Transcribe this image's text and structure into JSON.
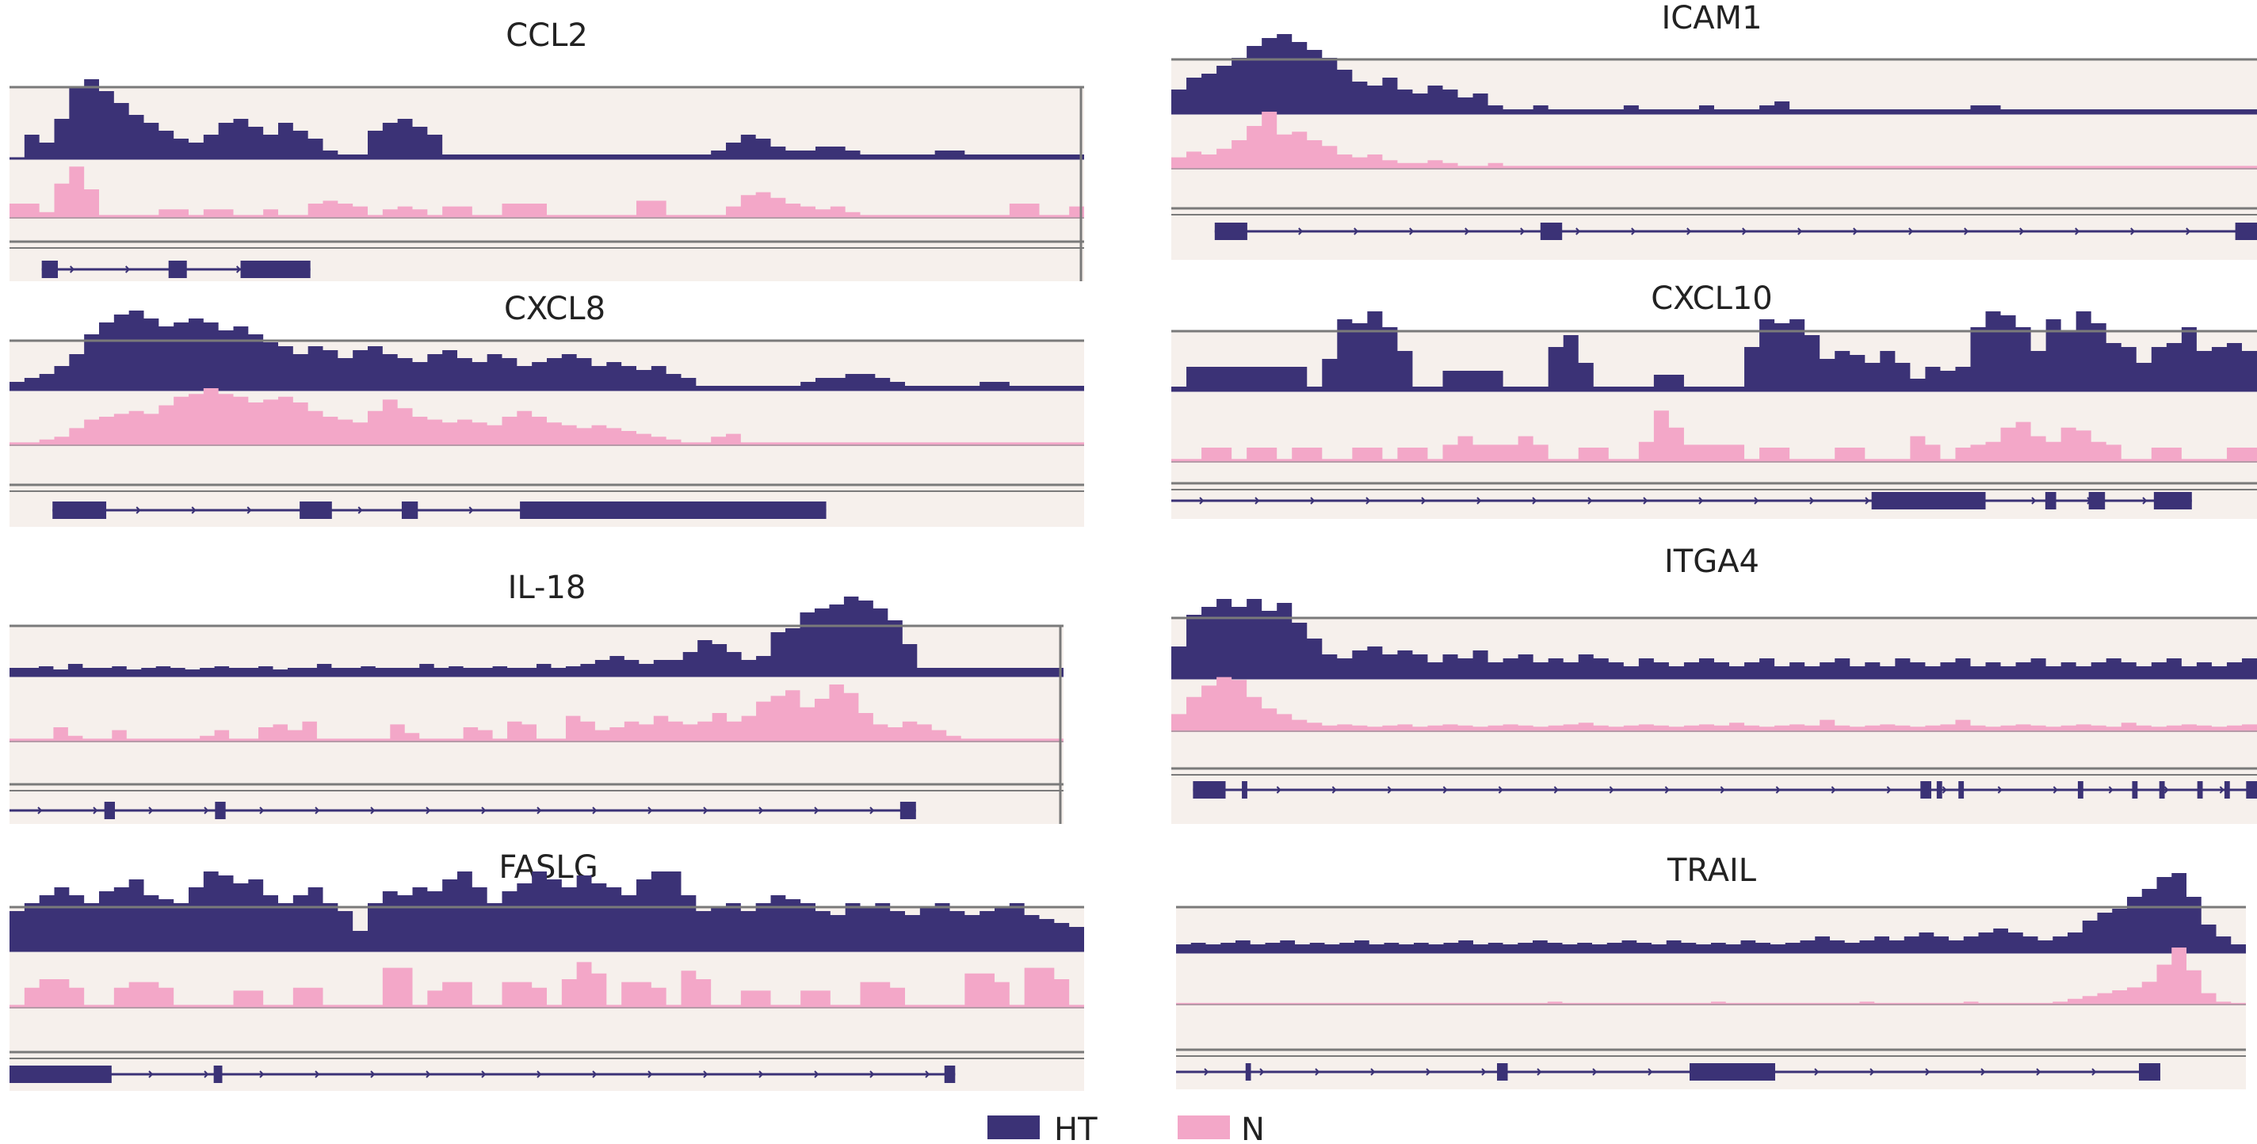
{
  "colors": {
    "ht": "#3b3276",
    "n": "#f3a7c8",
    "panel_bg": "#f6f0ec",
    "frame": "#7a7a7a",
    "gene_model": "#3b3276"
  },
  "legend": {
    "items": [
      {
        "label": "HT",
        "color": "#3b3276"
      },
      {
        "label": "N",
        "color": "#f3a7c8"
      }
    ]
  },
  "genes": [
    {
      "id": "ccl2",
      "name": "CCL2",
      "ht": [
        0,
        0.3,
        0.2,
        0.5,
        0.9,
        1.0,
        0.85,
        0.7,
        0.55,
        0.45,
        0.35,
        0.25,
        0.2,
        0.3,
        0.45,
        0.5,
        0.4,
        0.3,
        0.45,
        0.35,
        0.25,
        0.1,
        0.05,
        0.05,
        0.35,
        0.45,
        0.5,
        0.4,
        0.3,
        0.05,
        0.05,
        0.05,
        0.05,
        0.05,
        0.05,
        0.05,
        0.05,
        0.05,
        0.05,
        0.05,
        0.05,
        0.05,
        0.05,
        0.05,
        0.05,
        0.05,
        0.05,
        0.1,
        0.2,
        0.3,
        0.25,
        0.15,
        0.1,
        0.1,
        0.15,
        0.15,
        0.1,
        0.05,
        0.05,
        0.05,
        0.05,
        0.05,
        0.1,
        0.1,
        0.05,
        0.05,
        0.05,
        0.05,
        0.05,
        0.05,
        0.05,
        0.05
      ],
      "n": [
        0.25,
        0.25,
        0.1,
        0.6,
        0.9,
        0.5,
        0.05,
        0.05,
        0.05,
        0.05,
        0.15,
        0.15,
        0.05,
        0.15,
        0.15,
        0.05,
        0.05,
        0.15,
        0.05,
        0.05,
        0.25,
        0.3,
        0.25,
        0.2,
        0.05,
        0.15,
        0.2,
        0.15,
        0.05,
        0.2,
        0.2,
        0.05,
        0.05,
        0.25,
        0.25,
        0.25,
        0.05,
        0.05,
        0.05,
        0.05,
        0.05,
        0.05,
        0.3,
        0.3,
        0.05,
        0.05,
        0.05,
        0.05,
        0.2,
        0.4,
        0.45,
        0.35,
        0.25,
        0.2,
        0.15,
        0.2,
        0.1,
        0.05,
        0.05,
        0.05,
        0.05,
        0.05,
        0.05,
        0.05,
        0.05,
        0.05,
        0.05,
        0.25,
        0.25,
        0.05,
        0.05,
        0.2
      ],
      "model": {
        "from": 0.03,
        "to": 0.28,
        "exons": [
          [
            0.03,
            0.045
          ],
          [
            0.148,
            0.165
          ],
          [
            0.215,
            0.28
          ]
        ]
      }
    },
    {
      "id": "icam1",
      "name": "ICAM1",
      "ht": [
        0.3,
        0.45,
        0.5,
        0.6,
        0.7,
        0.85,
        0.95,
        1.0,
        0.9,
        0.8,
        0.7,
        0.55,
        0.4,
        0.35,
        0.45,
        0.3,
        0.25,
        0.35,
        0.3,
        0.2,
        0.25,
        0.1,
        0.05,
        0.05,
        0.1,
        0.05,
        0.05,
        0.05,
        0.05,
        0.05,
        0.1,
        0.05,
        0.05,
        0.05,
        0.05,
        0.1,
        0.05,
        0.05,
        0.05,
        0.1,
        0.15,
        0.05,
        0.05,
        0.05,
        0.05,
        0.05,
        0.05,
        0.05,
        0.05,
        0.05,
        0.05,
        0.05,
        0.05,
        0.1,
        0.1,
        0.05,
        0.05,
        0.05,
        0.05,
        0.05,
        0.05,
        0.05,
        0.05,
        0.05,
        0.05,
        0.05,
        0.05,
        0.05,
        0.05,
        0.05,
        0.05,
        0.05
      ],
      "n": [
        0.2,
        0.3,
        0.25,
        0.35,
        0.5,
        0.75,
        1.0,
        0.6,
        0.65,
        0.5,
        0.4,
        0.25,
        0.2,
        0.25,
        0.15,
        0.1,
        0.1,
        0.15,
        0.1,
        0.05,
        0.05,
        0.1,
        0.05,
        0.05,
        0.05,
        0.05,
        0.05,
        0.05,
        0.05,
        0.05,
        0.05,
        0.05,
        0.05,
        0.05,
        0.05,
        0.05,
        0.05,
        0.05,
        0.05,
        0.05,
        0.05,
        0.05,
        0.05,
        0.05,
        0.05,
        0.05,
        0.05,
        0.05,
        0.05,
        0.05,
        0.05,
        0.05,
        0.05,
        0.05,
        0.05,
        0.05,
        0.05,
        0.05,
        0.05,
        0.05,
        0.05,
        0.05,
        0.05,
        0.05,
        0.05,
        0.05,
        0.05,
        0.05,
        0.05,
        0.05,
        0.05,
        0.05
      ],
      "model": {
        "from": 0.04,
        "to": 1.0,
        "exons": [
          [
            0.04,
            0.07
          ],
          [
            0.34,
            0.36
          ],
          [
            0.98,
            1.0
          ]
        ]
      }
    },
    {
      "id": "cxcl8",
      "name": "CXCL8",
      "ht": [
        0.1,
        0.15,
        0.2,
        0.3,
        0.45,
        0.7,
        0.85,
        0.95,
        1.0,
        0.9,
        0.8,
        0.85,
        0.9,
        0.85,
        0.75,
        0.8,
        0.7,
        0.6,
        0.55,
        0.45,
        0.55,
        0.5,
        0.4,
        0.5,
        0.55,
        0.45,
        0.4,
        0.35,
        0.45,
        0.5,
        0.4,
        0.35,
        0.45,
        0.4,
        0.3,
        0.35,
        0.4,
        0.45,
        0.4,
        0.3,
        0.35,
        0.3,
        0.25,
        0.3,
        0.2,
        0.15,
        0.05,
        0.05,
        0.05,
        0.05,
        0.05,
        0.05,
        0.05,
        0.1,
        0.15,
        0.15,
        0.2,
        0.2,
        0.15,
        0.1,
        0.05,
        0.05,
        0.05,
        0.05,
        0.05,
        0.1,
        0.1,
        0.05,
        0.05,
        0.05,
        0.05,
        0.05
      ],
      "n": [
        0.05,
        0.05,
        0.1,
        0.15,
        0.3,
        0.45,
        0.5,
        0.55,
        0.6,
        0.55,
        0.7,
        0.85,
        0.9,
        1.0,
        0.9,
        0.85,
        0.75,
        0.8,
        0.85,
        0.75,
        0.6,
        0.5,
        0.45,
        0.4,
        0.6,
        0.8,
        0.65,
        0.5,
        0.45,
        0.4,
        0.45,
        0.4,
        0.35,
        0.5,
        0.6,
        0.5,
        0.4,
        0.35,
        0.3,
        0.35,
        0.3,
        0.25,
        0.2,
        0.15,
        0.1,
        0.05,
        0.05,
        0.15,
        0.2,
        0.05,
        0.05,
        0.05,
        0.05,
        0.05,
        0.05,
        0.05,
        0.05,
        0.05,
        0.05,
        0.05,
        0.05,
        0.05,
        0.05,
        0.05,
        0.05,
        0.05,
        0.05,
        0.05,
        0.05,
        0.05,
        0.05,
        0.05
      ],
      "model": {
        "from": 0.04,
        "to": 0.76,
        "exons": [
          [
            0.04,
            0.09
          ],
          [
            0.27,
            0.3
          ],
          [
            0.365,
            0.38
          ],
          [
            0.475,
            0.76
          ]
        ]
      }
    },
    {
      "id": "cxcl10",
      "name": "CXCL10",
      "ht": [
        0.05,
        0.3,
        0.3,
        0.3,
        0.3,
        0.3,
        0.3,
        0.3,
        0.3,
        0.05,
        0.4,
        0.9,
        0.85,
        1.0,
        0.8,
        0.5,
        0.05,
        0.05,
        0.25,
        0.25,
        0.25,
        0.25,
        0.05,
        0.05,
        0.05,
        0.55,
        0.7,
        0.35,
        0.05,
        0.05,
        0.05,
        0.05,
        0.2,
        0.2,
        0.05,
        0.05,
        0.05,
        0.05,
        0.55,
        0.9,
        0.85,
        0.9,
        0.7,
        0.4,
        0.5,
        0.45,
        0.35,
        0.5,
        0.35,
        0.15,
        0.3,
        0.25,
        0.3,
        0.8,
        1.0,
        0.95,
        0.8,
        0.5,
        0.9,
        0.75,
        1.0,
        0.85,
        0.6,
        0.55,
        0.35,
        0.55,
        0.6,
        0.8,
        0.5,
        0.55,
        0.6,
        0.5
      ],
      "n": [
        0.05,
        0.05,
        0.25,
        0.25,
        0.05,
        0.25,
        0.25,
        0.05,
        0.25,
        0.25,
        0.05,
        0.05,
        0.25,
        0.25,
        0.05,
        0.25,
        0.25,
        0.05,
        0.3,
        0.45,
        0.3,
        0.3,
        0.3,
        0.45,
        0.3,
        0.05,
        0.05,
        0.25,
        0.25,
        0.05,
        0.05,
        0.35,
        0.9,
        0.6,
        0.3,
        0.3,
        0.3,
        0.3,
        0.05,
        0.25,
        0.25,
        0.05,
        0.05,
        0.05,
        0.25,
        0.25,
        0.05,
        0.05,
        0.05,
        0.45,
        0.3,
        0.05,
        0.25,
        0.3,
        0.35,
        0.6,
        0.7,
        0.45,
        0.35,
        0.6,
        0.55,
        0.35,
        0.3,
        0.05,
        0.05,
        0.25,
        0.25,
        0.05,
        0.05,
        0.05,
        0.25,
        0.25
      ],
      "model": {
        "from": 0.0,
        "to": 0.94,
        "exons": [
          [
            0.645,
            0.75
          ],
          [
            0.805,
            0.815
          ],
          [
            0.845,
            0.86
          ],
          [
            0.905,
            0.94
          ]
        ]
      }
    },
    {
      "id": "il18",
      "name": "IL-18",
      "ht": [
        0.1,
        0.1,
        0.12,
        0.08,
        0.15,
        0.1,
        0.1,
        0.12,
        0.08,
        0.1,
        0.12,
        0.1,
        0.08,
        0.1,
        0.12,
        0.1,
        0.1,
        0.12,
        0.08,
        0.1,
        0.1,
        0.15,
        0.1,
        0.1,
        0.12,
        0.1,
        0.1,
        0.1,
        0.15,
        0.1,
        0.12,
        0.1,
        0.1,
        0.12,
        0.1,
        0.1,
        0.15,
        0.1,
        0.12,
        0.15,
        0.2,
        0.25,
        0.2,
        0.15,
        0.2,
        0.2,
        0.3,
        0.45,
        0.4,
        0.3,
        0.2,
        0.25,
        0.55,
        0.6,
        0.8,
        0.85,
        0.9,
        1.0,
        0.95,
        0.85,
        0.7,
        0.4,
        0.1,
        0.1,
        0.1,
        0.1,
        0.1,
        0.1,
        0.1,
        0.1,
        0.1,
        0.1
      ],
      "n": [
        0.05,
        0.05,
        0.05,
        0.25,
        0.1,
        0.05,
        0.05,
        0.2,
        0.05,
        0.05,
        0.05,
        0.05,
        0.05,
        0.1,
        0.2,
        0.05,
        0.05,
        0.25,
        0.3,
        0.2,
        0.35,
        0.05,
        0.05,
        0.05,
        0.05,
        0.05,
        0.3,
        0.15,
        0.05,
        0.05,
        0.05,
        0.25,
        0.2,
        0.05,
        0.35,
        0.3,
        0.05,
        0.05,
        0.45,
        0.35,
        0.2,
        0.25,
        0.35,
        0.3,
        0.45,
        0.35,
        0.3,
        0.35,
        0.5,
        0.35,
        0.45,
        0.7,
        0.8,
        0.9,
        0.6,
        0.75,
        1.0,
        0.85,
        0.5,
        0.3,
        0.25,
        0.35,
        0.3,
        0.2,
        0.1,
        0.05,
        0.05,
        0.05,
        0.05,
        0.05,
        0.05,
        0.05
      ],
      "model": {
        "from": 0.0,
        "to": 0.86,
        "exons": [
          [
            0.09,
            0.1
          ],
          [
            0.195,
            0.205
          ],
          [
            0.845,
            0.86
          ]
        ]
      }
    },
    {
      "id": "itga4",
      "name": "ITGA4",
      "ht": [
        0.4,
        0.8,
        0.9,
        1.0,
        0.9,
        1.0,
        0.85,
        0.95,
        0.7,
        0.5,
        0.3,
        0.25,
        0.35,
        0.4,
        0.3,
        0.35,
        0.3,
        0.2,
        0.3,
        0.25,
        0.35,
        0.2,
        0.25,
        0.3,
        0.2,
        0.25,
        0.2,
        0.3,
        0.25,
        0.2,
        0.15,
        0.25,
        0.2,
        0.15,
        0.2,
        0.25,
        0.2,
        0.15,
        0.2,
        0.25,
        0.15,
        0.2,
        0.15,
        0.2,
        0.25,
        0.15,
        0.2,
        0.15,
        0.25,
        0.2,
        0.15,
        0.2,
        0.25,
        0.15,
        0.2,
        0.15,
        0.2,
        0.25,
        0.15,
        0.2,
        0.15,
        0.2,
        0.25,
        0.2,
        0.15,
        0.2,
        0.25,
        0.15,
        0.2,
        0.15,
        0.2,
        0.25
      ],
      "n": [
        0.3,
        0.6,
        0.8,
        0.95,
        0.9,
        0.6,
        0.4,
        0.3,
        0.2,
        0.15,
        0.1,
        0.12,
        0.1,
        0.08,
        0.1,
        0.12,
        0.08,
        0.1,
        0.12,
        0.1,
        0.08,
        0.1,
        0.12,
        0.1,
        0.08,
        0.1,
        0.12,
        0.15,
        0.1,
        0.08,
        0.1,
        0.12,
        0.1,
        0.08,
        0.1,
        0.12,
        0.1,
        0.15,
        0.1,
        0.08,
        0.1,
        0.12,
        0.1,
        0.2,
        0.1,
        0.08,
        0.1,
        0.12,
        0.1,
        0.08,
        0.1,
        0.12,
        0.2,
        0.1,
        0.08,
        0.1,
        0.12,
        0.1,
        0.08,
        0.1,
        0.12,
        0.1,
        0.08,
        0.15,
        0.1,
        0.08,
        0.1,
        0.12,
        0.1,
        0.08,
        0.1,
        0.12
      ],
      "model": {
        "from": 0.02,
        "to": 1.0,
        "exons": [
          [
            0.02,
            0.05
          ],
          [
            0.065,
            0.07
          ],
          [
            0.69,
            0.7
          ],
          [
            0.705,
            0.71
          ],
          [
            0.725,
            0.73
          ],
          [
            0.835,
            0.84
          ],
          [
            0.885,
            0.89
          ],
          [
            0.91,
            0.915
          ],
          [
            0.945,
            0.95
          ],
          [
            0.97,
            0.975
          ],
          [
            0.99,
            1.0
          ]
        ]
      }
    },
    {
      "id": "faslg",
      "name": "FASLG",
      "ht": [
        0.5,
        0.6,
        0.7,
        0.8,
        0.7,
        0.6,
        0.75,
        0.8,
        0.9,
        0.7,
        0.65,
        0.6,
        0.8,
        1.0,
        0.95,
        0.85,
        0.9,
        0.7,
        0.6,
        0.7,
        0.8,
        0.6,
        0.5,
        0.25,
        0.6,
        0.75,
        0.7,
        0.8,
        0.75,
        0.9,
        1.0,
        0.8,
        0.6,
        0.75,
        0.85,
        1.0,
        0.9,
        0.8,
        0.95,
        0.85,
        0.8,
        0.7,
        0.9,
        1.0,
        1.0,
        0.7,
        0.5,
        0.55,
        0.6,
        0.5,
        0.6,
        0.7,
        0.65,
        0.6,
        0.5,
        0.45,
        0.6,
        0.55,
        0.6,
        0.5,
        0.45,
        0.55,
        0.6,
        0.5,
        0.45,
        0.5,
        0.55,
        0.6,
        0.45,
        0.4,
        0.35,
        0.3
      ],
      "n": [
        0.05,
        0.35,
        0.5,
        0.5,
        0.35,
        0.05,
        0.05,
        0.35,
        0.45,
        0.45,
        0.35,
        0.05,
        0.05,
        0.05,
        0.05,
        0.3,
        0.3,
        0.05,
        0.05,
        0.35,
        0.35,
        0.05,
        0.05,
        0.05,
        0.05,
        0.7,
        0.7,
        0.05,
        0.3,
        0.45,
        0.45,
        0.05,
        0.05,
        0.45,
        0.45,
        0.35,
        0.05,
        0.5,
        0.8,
        0.6,
        0.05,
        0.45,
        0.45,
        0.35,
        0.05,
        0.65,
        0.5,
        0.05,
        0.05,
        0.3,
        0.3,
        0.05,
        0.05,
        0.3,
        0.3,
        0.05,
        0.05,
        0.45,
        0.45,
        0.35,
        0.05,
        0.05,
        0.05,
        0.05,
        0.6,
        0.6,
        0.45,
        0.05,
        0.7,
        0.7,
        0.5,
        0.05
      ],
      "model": {
        "from": 0.0,
        "to": 0.88,
        "exons": [
          [
            0.0,
            0.095
          ],
          [
            0.19,
            0.198
          ],
          [
            0.87,
            0.88
          ]
        ]
      }
    },
    {
      "id": "trail",
      "name": "TRAIL",
      "ht": [
        0.1,
        0.12,
        0.1,
        0.12,
        0.15,
        0.1,
        0.12,
        0.15,
        0.1,
        0.12,
        0.1,
        0.12,
        0.15,
        0.1,
        0.12,
        0.1,
        0.12,
        0.1,
        0.12,
        0.15,
        0.1,
        0.12,
        0.1,
        0.12,
        0.15,
        0.12,
        0.1,
        0.12,
        0.1,
        0.12,
        0.15,
        0.12,
        0.1,
        0.15,
        0.12,
        0.1,
        0.12,
        0.1,
        0.15,
        0.12,
        0.1,
        0.12,
        0.15,
        0.2,
        0.15,
        0.12,
        0.15,
        0.2,
        0.15,
        0.2,
        0.25,
        0.2,
        0.15,
        0.2,
        0.25,
        0.3,
        0.25,
        0.2,
        0.15,
        0.2,
        0.25,
        0.4,
        0.5,
        0.55,
        0.7,
        0.8,
        0.95,
        1.0,
        0.7,
        0.35,
        0.2,
        0.1
      ],
      "n": [
        0.03,
        0.03,
        0.03,
        0.03,
        0.03,
        0.03,
        0.03,
        0.03,
        0.03,
        0.03,
        0.03,
        0.03,
        0.03,
        0.03,
        0.03,
        0.03,
        0.03,
        0.03,
        0.03,
        0.03,
        0.03,
        0.03,
        0.03,
        0.03,
        0.03,
        0.05,
        0.03,
        0.03,
        0.03,
        0.03,
        0.03,
        0.03,
        0.03,
        0.03,
        0.03,
        0.03,
        0.05,
        0.03,
        0.03,
        0.03,
        0.03,
        0.03,
        0.03,
        0.03,
        0.03,
        0.03,
        0.05,
        0.03,
        0.03,
        0.03,
        0.03,
        0.03,
        0.03,
        0.05,
        0.03,
        0.03,
        0.03,
        0.03,
        0.03,
        0.05,
        0.1,
        0.15,
        0.2,
        0.25,
        0.3,
        0.4,
        0.7,
        1.0,
        0.6,
        0.2,
        0.05,
        0.03
      ],
      "model": {
        "from": 0.0,
        "to": 0.92,
        "exons": [
          [
            0.065,
            0.07
          ],
          [
            0.3,
            0.31
          ],
          [
            0.48,
            0.56
          ],
          [
            0.9,
            0.92
          ]
        ]
      }
    }
  ]
}
